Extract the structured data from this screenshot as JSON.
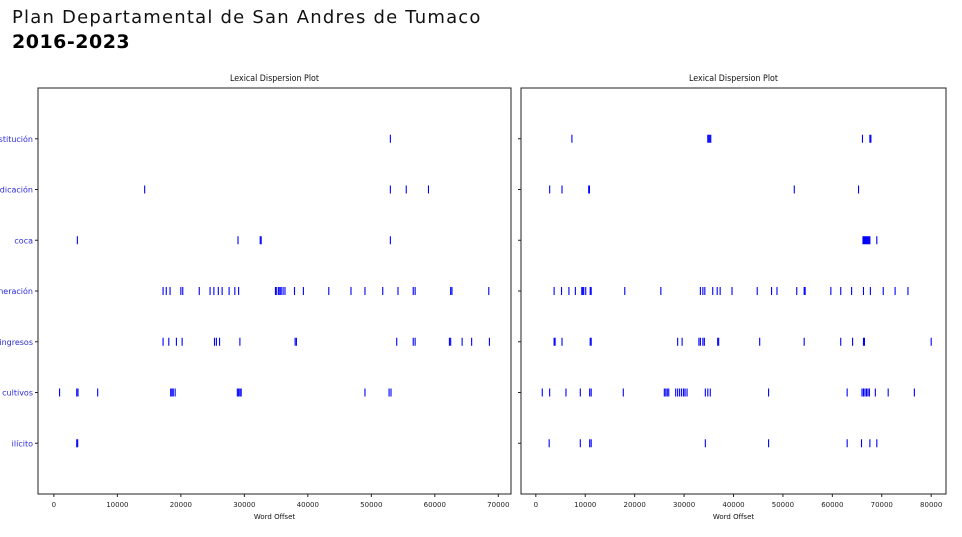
{
  "header": {
    "title": "Plan Departamental de San Andres de Tumaco",
    "subtitle": "2016-2023"
  },
  "colors": {
    "tick": "#0000ff",
    "label": "#2a2ad6",
    "axis": "#222222"
  },
  "chart_data": [
    {
      "type": "scatter",
      "title": "Lexical Dispersion Plot",
      "xlabel": "Word Offset",
      "ylabel": "",
      "xlim": [
        -2500,
        72000
      ],
      "xticks": [
        0,
        10000,
        20000,
        30000,
        40000,
        50000,
        60000,
        70000
      ],
      "xtick_labels": [
        "0",
        "10000",
        "20000",
        "30000",
        "40000",
        "50000",
        "60000",
        "70000"
      ],
      "categories": [
        "sustitución",
        "erradicación",
        "coca",
        "generación",
        "ingresos",
        "cultivos",
        "ilícito"
      ],
      "series": [
        {
          "word": "sustitución",
          "x": [
            53000
          ]
        },
        {
          "word": "erradicación",
          "x": [
            14300,
            53000,
            55500,
            59000
          ]
        },
        {
          "word": "coca",
          "x": [
            3700,
            29000,
            32500,
            32650,
            53000
          ]
        },
        {
          "word": "generación",
          "x": [
            17200,
            17700,
            18300,
            20000,
            20300,
            22900,
            24600,
            25200,
            25900,
            26500,
            27600,
            28500,
            29100,
            34900,
            35100,
            35400,
            35600,
            35800,
            36100,
            36400,
            37900,
            39300,
            43300,
            46800,
            49000,
            51800,
            54200,
            56600,
            56900,
            62500,
            62700,
            68500
          ]
        },
        {
          "word": "ingresos",
          "x": [
            17200,
            18100,
            19300,
            20200,
            25300,
            25600,
            26100,
            29300,
            38000,
            38200,
            54000,
            56600,
            56900,
            62300,
            62500,
            64300,
            65800,
            68600
          ]
        },
        {
          "word": "cultivos",
          "x": [
            900,
            3600,
            3800,
            6900,
            18400,
            18600,
            18800,
            19100,
            28900,
            29100,
            29300,
            29500,
            49000,
            52800,
            53100
          ]
        },
        {
          "word": "ilícito",
          "x": [
            3600,
            3750
          ]
        }
      ]
    },
    {
      "type": "scatter",
      "title": "Lexical Dispersion Plot",
      "xlabel": "Word Offset",
      "ylabel": "",
      "xlim": [
        -3000,
        83000
      ],
      "xticks": [
        0,
        10000,
        20000,
        30000,
        40000,
        50000,
        60000,
        70000,
        80000
      ],
      "xtick_labels": [
        "0",
        "10000",
        "20000",
        "30000",
        "40000",
        "50000",
        "60000",
        "70000",
        "80000"
      ],
      "categories": [
        "sustitución",
        "erradicación",
        "coca",
        "generación",
        "ingresos",
        "cultivos",
        "ilícito"
      ],
      "series": [
        {
          "word": "sustitución",
          "x": [
            7300,
            34800,
            35000,
            35200,
            35400,
            66100,
            67600,
            67800
          ]
        },
        {
          "word": "erradicación",
          "x": [
            2800,
            5300,
            10700,
            10850,
            52300,
            65300
          ]
        },
        {
          "word": "coca",
          "x": [
            66200,
            66400,
            66600,
            66800,
            67000,
            67200,
            67400,
            67600,
            69000
          ]
        },
        {
          "word": "generación",
          "x": [
            3700,
            5200,
            6700,
            8000,
            9300,
            9500,
            9700,
            10100,
            11000,
            11200,
            18000,
            25300,
            33300,
            33800,
            34200,
            35800,
            36700,
            37300,
            39700,
            44800,
            47700,
            48800,
            52800,
            54300,
            54500,
            59700,
            61700,
            63900,
            66300,
            67700,
            70300,
            72700,
            75300
          ]
        },
        {
          "word": "ingresos",
          "x": [
            3700,
            3900,
            5300,
            11000,
            11200,
            28700,
            29600,
            33000,
            33300,
            33800,
            34100,
            36800,
            37000,
            45300,
            54300,
            61700,
            64100,
            66300,
            66500,
            80000
          ]
        },
        {
          "word": "cultivos",
          "x": [
            1300,
            2800,
            6100,
            9000,
            10900,
            11200,
            17700,
            26000,
            26300,
            26600,
            26900,
            28300,
            28700,
            29100,
            29500,
            29900,
            30200,
            30600,
            34300,
            34800,
            35300,
            47100,
            63000,
            66000,
            66300,
            66600,
            66900,
            67200,
            67500,
            68700,
            71300,
            76600
          ]
        },
        {
          "word": "ilícito",
          "x": [
            2700,
            9000,
            10900,
            11200,
            34300,
            47100,
            63000,
            65900,
            67600,
            69000
          ]
        }
      ]
    }
  ]
}
